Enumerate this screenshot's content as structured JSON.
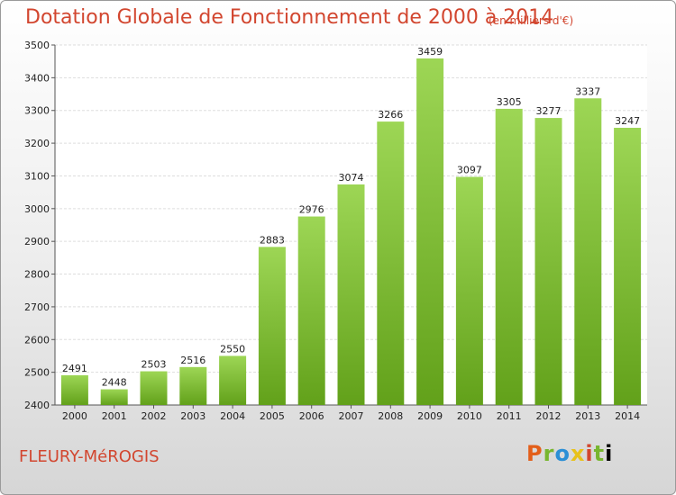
{
  "header": {
    "title": "Dotation Globale de Fonctionnement de 2000 à 2014",
    "subtitle": "(en milliers d'€)"
  },
  "footer": {
    "commune": "FLEURY-MéROGIS",
    "logo": [
      "P",
      "r",
      "o",
      "x",
      "i",
      "t",
      "i"
    ]
  },
  "colors": {
    "bar_top": "#9dd655",
    "bar_bottom": "#62a11a",
    "title": "#d2462f"
  },
  "chart_data": {
    "type": "bar",
    "title": "Dotation Globale de Fonctionnement de 2000 à 2014",
    "subtitle": "(en milliers d'€)",
    "categories": [
      "2000",
      "2001",
      "2002",
      "2003",
      "2004",
      "2005",
      "2006",
      "2007",
      "2008",
      "2009",
      "2010",
      "2011",
      "2012",
      "2013",
      "2014"
    ],
    "values": [
      2491,
      2448,
      2503,
      2516,
      2550,
      2883,
      2976,
      3074,
      3266,
      3459,
      3097,
      3305,
      3277,
      3337,
      3247
    ],
    "yticks": [
      2400,
      2500,
      2600,
      2700,
      2800,
      2900,
      3000,
      3100,
      3200,
      3300,
      3400,
      3500
    ],
    "ylim": [
      2400,
      3500
    ],
    "xlabel": "",
    "ylabel": "",
    "grid": true
  }
}
